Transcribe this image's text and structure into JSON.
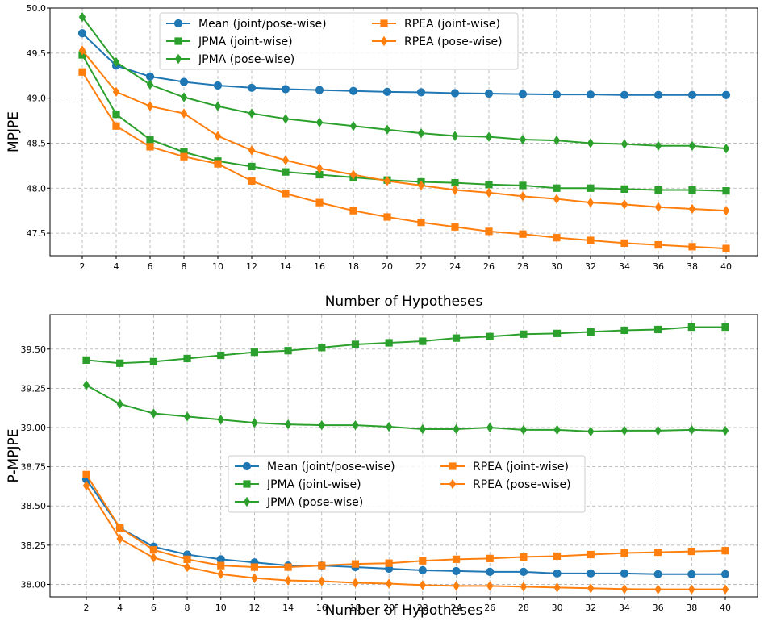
{
  "chart_data": [
    {
      "type": "line",
      "title": "",
      "xlabel": "Number of Hypotheses",
      "ylabel": "MPJPE",
      "x": [
        2,
        4,
        6,
        8,
        10,
        12,
        14,
        16,
        18,
        20,
        22,
        24,
        26,
        28,
        30,
        32,
        34,
        36,
        38,
        40
      ],
      "xticks": [
        "2",
        "4",
        "6",
        "8",
        "10",
        "12",
        "14",
        "16",
        "18",
        "20",
        "22",
        "24",
        "26",
        "28",
        "30",
        "32",
        "34",
        "36",
        "38",
        "40"
      ],
      "ylim": [
        47.25,
        50.0
      ],
      "yticks": [
        "47.5",
        "48.0",
        "48.5",
        "49.0",
        "49.5",
        "50.0"
      ],
      "grid": true,
      "legend_position": "top-center",
      "series": [
        {
          "name": "Mean (joint/pose-wise)",
          "color": "#1f77b4",
          "marker": "circle",
          "values": [
            49.72,
            49.36,
            49.24,
            49.18,
            49.14,
            49.115,
            49.1,
            49.09,
            49.08,
            49.07,
            49.065,
            49.055,
            49.05,
            49.045,
            49.04,
            49.04,
            49.035,
            49.035,
            49.035,
            49.035
          ]
        },
        {
          "name": "JPMA (joint-wise)",
          "color": "#2ca02c",
          "marker": "square",
          "values": [
            49.48,
            48.82,
            48.54,
            48.4,
            48.3,
            48.24,
            48.18,
            48.15,
            48.12,
            48.09,
            48.07,
            48.06,
            48.04,
            48.03,
            48.0,
            48.0,
            47.99,
            47.98,
            47.98,
            47.97
          ]
        },
        {
          "name": "JPMA (pose-wise)",
          "color": "#2ca02c",
          "marker": "diamond",
          "values": [
            49.9,
            49.4,
            49.15,
            49.01,
            48.91,
            48.83,
            48.77,
            48.73,
            48.69,
            48.65,
            48.61,
            48.58,
            48.57,
            48.54,
            48.53,
            48.5,
            48.49,
            48.47,
            48.47,
            48.44
          ]
        },
        {
          "name": "RPEA (joint-wise)",
          "color": "#ff7f0e",
          "marker": "square",
          "values": [
            49.29,
            48.69,
            48.46,
            48.35,
            48.27,
            48.08,
            47.94,
            47.84,
            47.75,
            47.68,
            47.62,
            47.57,
            47.52,
            47.49,
            47.45,
            47.42,
            47.39,
            47.37,
            47.35,
            47.33
          ]
        },
        {
          "name": "RPEA (pose-wise)",
          "color": "#ff7f0e",
          "marker": "diamond",
          "values": [
            49.53,
            49.07,
            48.91,
            48.83,
            48.58,
            48.42,
            48.31,
            48.22,
            48.15,
            48.08,
            48.03,
            47.98,
            47.95,
            47.91,
            47.88,
            47.84,
            47.82,
            47.79,
            47.77,
            47.75
          ]
        }
      ]
    },
    {
      "type": "line",
      "title": "",
      "xlabel": "Number of Hypotheses",
      "ylabel": "P-MPJPE",
      "x": [
        2,
        4,
        6,
        8,
        10,
        12,
        14,
        16,
        18,
        20,
        22,
        24,
        26,
        28,
        30,
        32,
        34,
        36,
        38,
        40
      ],
      "xticks": [
        "2",
        "4",
        "6",
        "8",
        "10",
        "12",
        "14",
        "16",
        "18",
        "20",
        "22",
        "24",
        "26",
        "28",
        "30",
        "32",
        "34",
        "36",
        "38",
        "40"
      ],
      "ylim": [
        37.92,
        39.72
      ],
      "yticks": [
        "38.00",
        "38.25",
        "38.50",
        "38.75",
        "39.00",
        "39.25",
        "39.50"
      ],
      "grid": true,
      "legend_position": "center",
      "series": [
        {
          "name": "Mean (joint/pose-wise)",
          "color": "#1f77b4",
          "marker": "circle",
          "values": [
            38.67,
            38.36,
            38.24,
            38.19,
            38.16,
            38.14,
            38.12,
            38.12,
            38.11,
            38.1,
            38.09,
            38.085,
            38.08,
            38.08,
            38.07,
            38.07,
            38.07,
            38.065,
            38.065,
            38.065
          ]
        },
        {
          "name": "JPMA (joint-wise)",
          "color": "#2ca02c",
          "marker": "square",
          "values": [
            39.43,
            39.41,
            39.42,
            39.44,
            39.46,
            39.48,
            39.49,
            39.51,
            39.53,
            39.54,
            39.55,
            39.57,
            39.58,
            39.595,
            39.6,
            39.61,
            39.62,
            39.625,
            39.64,
            39.64
          ]
        },
        {
          "name": "JPMA (pose-wise)",
          "color": "#2ca02c",
          "marker": "diamond",
          "values": [
            39.27,
            39.15,
            39.09,
            39.07,
            39.05,
            39.03,
            39.02,
            39.015,
            39.015,
            39.005,
            38.99,
            38.99,
            39.0,
            38.985,
            38.985,
            38.975,
            38.98,
            38.98,
            38.985,
            38.98
          ]
        },
        {
          "name": "RPEA (joint-wise)",
          "color": "#ff7f0e",
          "marker": "square",
          "values": [
            38.7,
            38.36,
            38.22,
            38.16,
            38.12,
            38.11,
            38.11,
            38.12,
            38.13,
            38.135,
            38.15,
            38.16,
            38.165,
            38.175,
            38.18,
            38.19,
            38.2,
            38.205,
            38.21,
            38.215
          ]
        },
        {
          "name": "RPEA (pose-wise)",
          "color": "#ff7f0e",
          "marker": "diamond",
          "values": [
            38.63,
            38.29,
            38.17,
            38.11,
            38.065,
            38.04,
            38.025,
            38.02,
            38.01,
            38.005,
            37.995,
            37.99,
            37.99,
            37.985,
            37.98,
            37.975,
            37.97,
            37.968,
            37.968,
            37.968
          ]
        }
      ]
    }
  ]
}
